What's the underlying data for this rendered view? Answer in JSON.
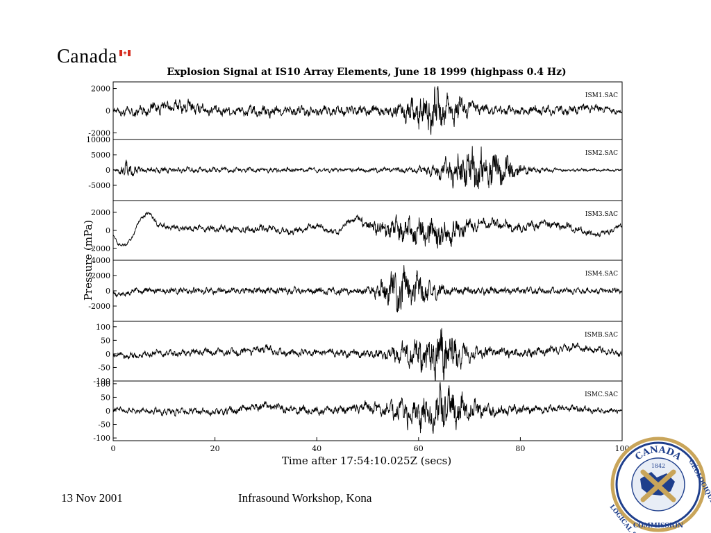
{
  "brand": {
    "wordmark": "Canada",
    "seal_text_top": "CANADA",
    "seal_year": "1842",
    "seal_text_left": "LOGICAL SURVEY",
    "seal_text_bottom": "COMMISSION",
    "seal_text_right": "GÉOLOGIQUE",
    "accent": "#d52b1e",
    "seal_blue": "#1f3f8c",
    "seal_gold": "#c9a55a"
  },
  "footer": {
    "date": "13 Nov 2001",
    "event": "Infrasound Workshop, Kona"
  },
  "chart_data": {
    "type": "line",
    "title": "Explosion Signal at IS10 Array Elements, June 18 1999 (highpass 0.4 Hz)",
    "xlabel": "Time after 17:54:10.025Z (secs)",
    "ylabel": "Pressure (mPa)",
    "xlim": [
      0,
      100
    ],
    "x_ticks": [
      "0",
      "20",
      "40",
      "60",
      "80",
      "100"
    ],
    "x_tick_values": [
      0,
      20,
      40,
      60,
      80,
      100
    ],
    "series": [
      {
        "name": "ISM1.SAC",
        "ylim": [
          -2600,
          2600
        ],
        "y_ticks": [
          "2000",
          "0",
          "-2000"
        ],
        "y_tick_values": [
          2000,
          0,
          -2000
        ],
        "envelope": {
          "x": [
            0,
            2,
            4,
            6,
            10,
            14,
            20,
            30,
            40,
            48,
            52,
            56,
            58,
            60,
            62,
            63,
            64,
            65,
            66,
            68,
            70,
            72,
            75,
            80,
            90,
            100
          ],
          "y": [
            200,
            500,
            500,
            700,
            600,
            700,
            500,
            600,
            500,
            500,
            600,
            700,
            1200,
            1800,
            2300,
            2600,
            2400,
            2000,
            1600,
            1400,
            900,
            600,
            500,
            500,
            500,
            300
          ]
        },
        "baseline": {
          "x": [
            0,
            4,
            8,
            14,
            20,
            30,
            40,
            50,
            60,
            70,
            80,
            90,
            94,
            97,
            100
          ],
          "y": [
            0,
            -200,
            300,
            400,
            0,
            -100,
            0,
            0,
            0,
            200,
            0,
            0,
            300,
            100,
            -100
          ]
        }
      },
      {
        "name": "ISM2.SAC",
        "ylim": [
          -10000,
          10000
        ],
        "y_ticks": [
          "10000",
          "5000",
          "0",
          "-5000"
        ],
        "y_tick_values": [
          10000,
          5000,
          0,
          -5000
        ],
        "envelope": {
          "x": [
            0,
            1,
            2,
            3,
            4,
            5,
            8,
            15,
            30,
            45,
            55,
            60,
            62,
            65,
            68,
            70,
            72,
            74,
            76,
            78,
            80,
            82,
            85,
            90,
            100
          ],
          "y": [
            400,
            900,
            2600,
            3200,
            2500,
            1200,
            1200,
            1000,
            900,
            800,
            900,
            1200,
            2000,
            4000,
            6500,
            8500,
            9000,
            8000,
            6500,
            4500,
            2500,
            1500,
            800,
            600,
            400
          ]
        },
        "baseline": {
          "x": [
            0,
            50,
            100
          ],
          "y": [
            0,
            0,
            0
          ]
        }
      },
      {
        "name": "ISM3.SAC",
        "ylim": [
          -3300,
          3300
        ],
        "y_ticks": [
          "2000",
          "0",
          "-2000"
        ],
        "y_tick_values": [
          2000,
          0,
          -2000
        ],
        "envelope": {
          "x": [
            0,
            10,
            20,
            30,
            40,
            48,
            50,
            52,
            55,
            58,
            60,
            62,
            64,
            66,
            68,
            70,
            75,
            80,
            90,
            100
          ],
          "y": [
            150,
            350,
            450,
            450,
            400,
            400,
            800,
            1000,
            1400,
            1800,
            2000,
            2400,
            2000,
            1600,
            1200,
            900,
            700,
            600,
            500,
            300
          ]
        },
        "baseline": {
          "x": [
            0,
            1,
            2.5,
            4,
            5.5,
            7,
            9,
            14,
            20,
            25,
            30,
            35,
            40,
            42,
            44,
            46,
            48,
            50,
            55,
            60,
            65,
            70,
            75,
            80,
            85,
            90,
            95,
            98,
            100
          ],
          "y": [
            -500,
            -1500,
            -1700,
            -500,
            1500,
            2000,
            500,
            200,
            200,
            0,
            300,
            -200,
            500,
            0,
            -300,
            800,
            1500,
            500,
            0,
            0,
            -500,
            500,
            800,
            200,
            800,
            300,
            -500,
            0,
            700
          ]
        }
      },
      {
        "name": "ISM4.SAC",
        "ylim": [
          -4000,
          4000
        ],
        "y_ticks": [
          "4000",
          "2000",
          "0",
          "-2000"
        ],
        "y_tick_values": [
          4000,
          2000,
          0,
          -2000
        ],
        "envelope": {
          "x": [
            0,
            10,
            30,
            40,
            50,
            52,
            54,
            55,
            56,
            58,
            60,
            62,
            63,
            65,
            70,
            80,
            90,
            100
          ],
          "y": [
            400,
            500,
            500,
            500,
            600,
            1200,
            2200,
            3200,
            4000,
            3000,
            2200,
            1500,
            1200,
            800,
            600,
            500,
            500,
            400
          ]
        },
        "baseline": {
          "x": [
            0,
            2,
            4,
            8,
            100
          ],
          "y": [
            -300,
            -500,
            0,
            0,
            0
          ]
        }
      },
      {
        "name": "ISMB.SAC",
        "ylim": [
          -100,
          120
        ],
        "y_ticks": [
          "100",
          "50",
          "0",
          "-50",
          "-100"
        ],
        "y_tick_values": [
          100,
          50,
          0,
          -50,
          -100
        ],
        "envelope": {
          "x": [
            0,
            10,
            20,
            30,
            40,
            50,
            54,
            57,
            60,
            62,
            64,
            65,
            66,
            68,
            70,
            75,
            80,
            90,
            100
          ],
          "y": [
            12,
            15,
            15,
            18,
            15,
            18,
            25,
            45,
            70,
            80,
            100,
            120,
            90,
            60,
            35,
            20,
            18,
            18,
            12
          ]
        },
        "baseline": {
          "x": [
            0,
            4,
            8,
            12,
            18,
            24,
            28,
            30,
            32,
            40,
            50,
            55,
            60,
            70,
            75,
            80,
            85,
            90,
            95,
            100
          ],
          "y": [
            0,
            -10,
            5,
            0,
            10,
            5,
            15,
            20,
            5,
            5,
            0,
            0,
            0,
            0,
            10,
            0,
            10,
            25,
            15,
            0
          ]
        }
      },
      {
        "name": "ISMC.SAC",
        "ylim": [
          -110,
          110
        ],
        "y_ticks": [
          "100",
          "50",
          "0",
          "-50",
          "-100"
        ],
        "y_tick_values": [
          100,
          50,
          0,
          -50,
          -100
        ],
        "envelope": {
          "x": [
            0,
            10,
            20,
            30,
            40,
            48,
            50,
            53,
            56,
            60,
            62,
            64,
            65,
            66,
            67,
            70,
            75,
            80,
            90,
            100
          ],
          "y": [
            10,
            15,
            15,
            18,
            18,
            20,
            22,
            30,
            50,
            70,
            80,
            90,
            100,
            90,
            80,
            45,
            25,
            18,
            15,
            10
          ]
        },
        "baseline": {
          "x": [
            0,
            5,
            10,
            15,
            20,
            25,
            30,
            35,
            40,
            45,
            50,
            55,
            60,
            65,
            70,
            75,
            80,
            85,
            90,
            95,
            100
          ],
          "y": [
            5,
            0,
            -5,
            0,
            -5,
            5,
            20,
            5,
            0,
            5,
            15,
            0,
            0,
            0,
            10,
            0,
            5,
            5,
            10,
            0,
            0
          ]
        }
      }
    ]
  }
}
